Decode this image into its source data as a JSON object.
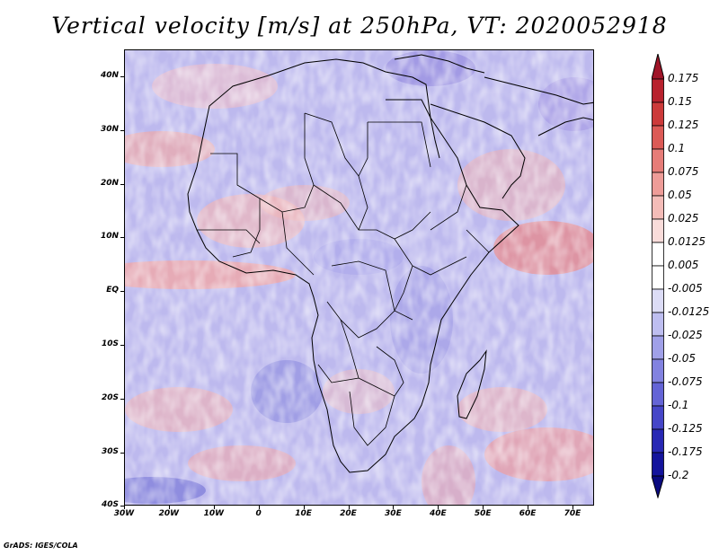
{
  "title": "Vertical velocity [m/s] at 250hPa, VT: 2020052918",
  "credit": "GrADS: IGES/COLA",
  "map": {
    "region": "Africa",
    "lat_range": [
      -40,
      45
    ],
    "lon_range": [
      -30,
      75
    ],
    "lat_ticks": [
      "40N",
      "30N",
      "20N",
      "10N",
      "EQ",
      "10S",
      "20S",
      "30S",
      "40S"
    ],
    "lon_ticks": [
      "30W",
      "20W",
      "10W",
      "0",
      "10E",
      "20E",
      "30E",
      "40E",
      "50E",
      "60E",
      "70E"
    ],
    "field": "vertical velocity"
  },
  "colorbar": {
    "levels": [
      "0.175",
      "0.15",
      "0.125",
      "0.1",
      "0.075",
      "0.05",
      "0.025",
      "0.0125",
      "0.005",
      "-0.005",
      "-0.0125",
      "-0.025",
      "-0.05",
      "-0.075",
      "-0.1",
      "-0.125",
      "-0.175",
      "-0.2"
    ],
    "colors": [
      "#a01428",
      "#b8222e",
      "#cc3a3a",
      "#dc5a56",
      "#e67c78",
      "#ee9c98",
      "#f4bcb8",
      "#f9dcda",
      "#ffffff",
      "#ffffff",
      "#dcdcf6",
      "#bebef0",
      "#a0a0e8",
      "#8282e0",
      "#6464d6",
      "#4646c8",
      "#2828b4",
      "#14149c",
      "#0a0a80"
    ]
  }
}
